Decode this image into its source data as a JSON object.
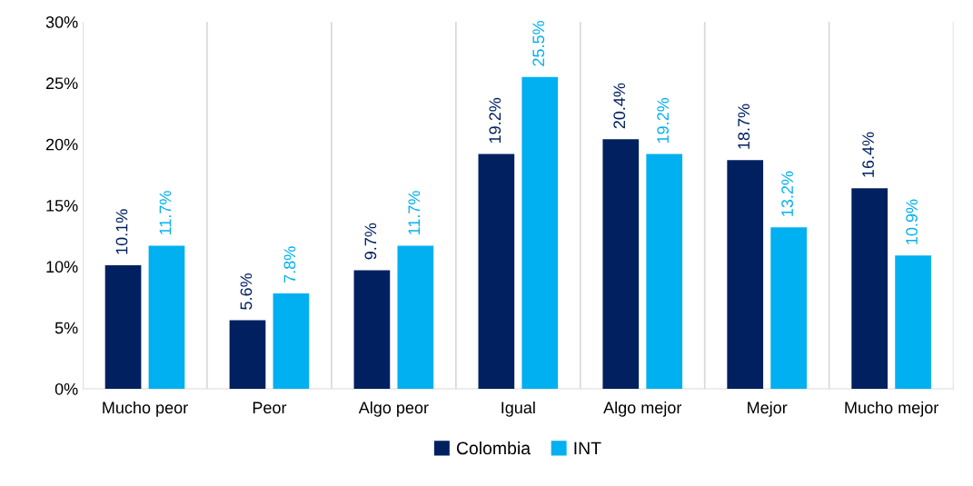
{
  "chart_data": {
    "type": "bar",
    "categories": [
      "Mucho peor",
      "Peor",
      "Algo peor",
      "Igual",
      "Algo mejor",
      "Mejor",
      "Mucho mejor"
    ],
    "series": [
      {
        "name": "Colombia",
        "color": "#002060",
        "values": [
          10.1,
          5.6,
          9.7,
          19.2,
          20.4,
          18.7,
          16.4
        ]
      },
      {
        "name": "INT",
        "color": "#00b0f0",
        "values": [
          11.7,
          7.8,
          11.7,
          25.5,
          19.2,
          13.2,
          10.9
        ]
      }
    ],
    "ylim": [
      0,
      30
    ],
    "yticks": [
      {
        "value": 0,
        "label": "0%"
      },
      {
        "value": 5,
        "label": "5%"
      },
      {
        "value": 10,
        "label": "10%"
      },
      {
        "value": 15,
        "label": "15%"
      },
      {
        "value": 20,
        "label": "20%"
      },
      {
        "value": 25,
        "label": "25%"
      },
      {
        "value": 30,
        "label": "30%"
      }
    ],
    "value_labels": [
      [
        "10.1%",
        "5.6%",
        "9.7%",
        "19.2%",
        "20.4%",
        "18.7%",
        "16.4%"
      ],
      [
        "11.7%",
        "7.8%",
        "11.7%",
        "25.5%",
        "19.2%",
        "13.2%",
        "10.9%"
      ]
    ],
    "grid": "x",
    "legend": "bottom"
  }
}
